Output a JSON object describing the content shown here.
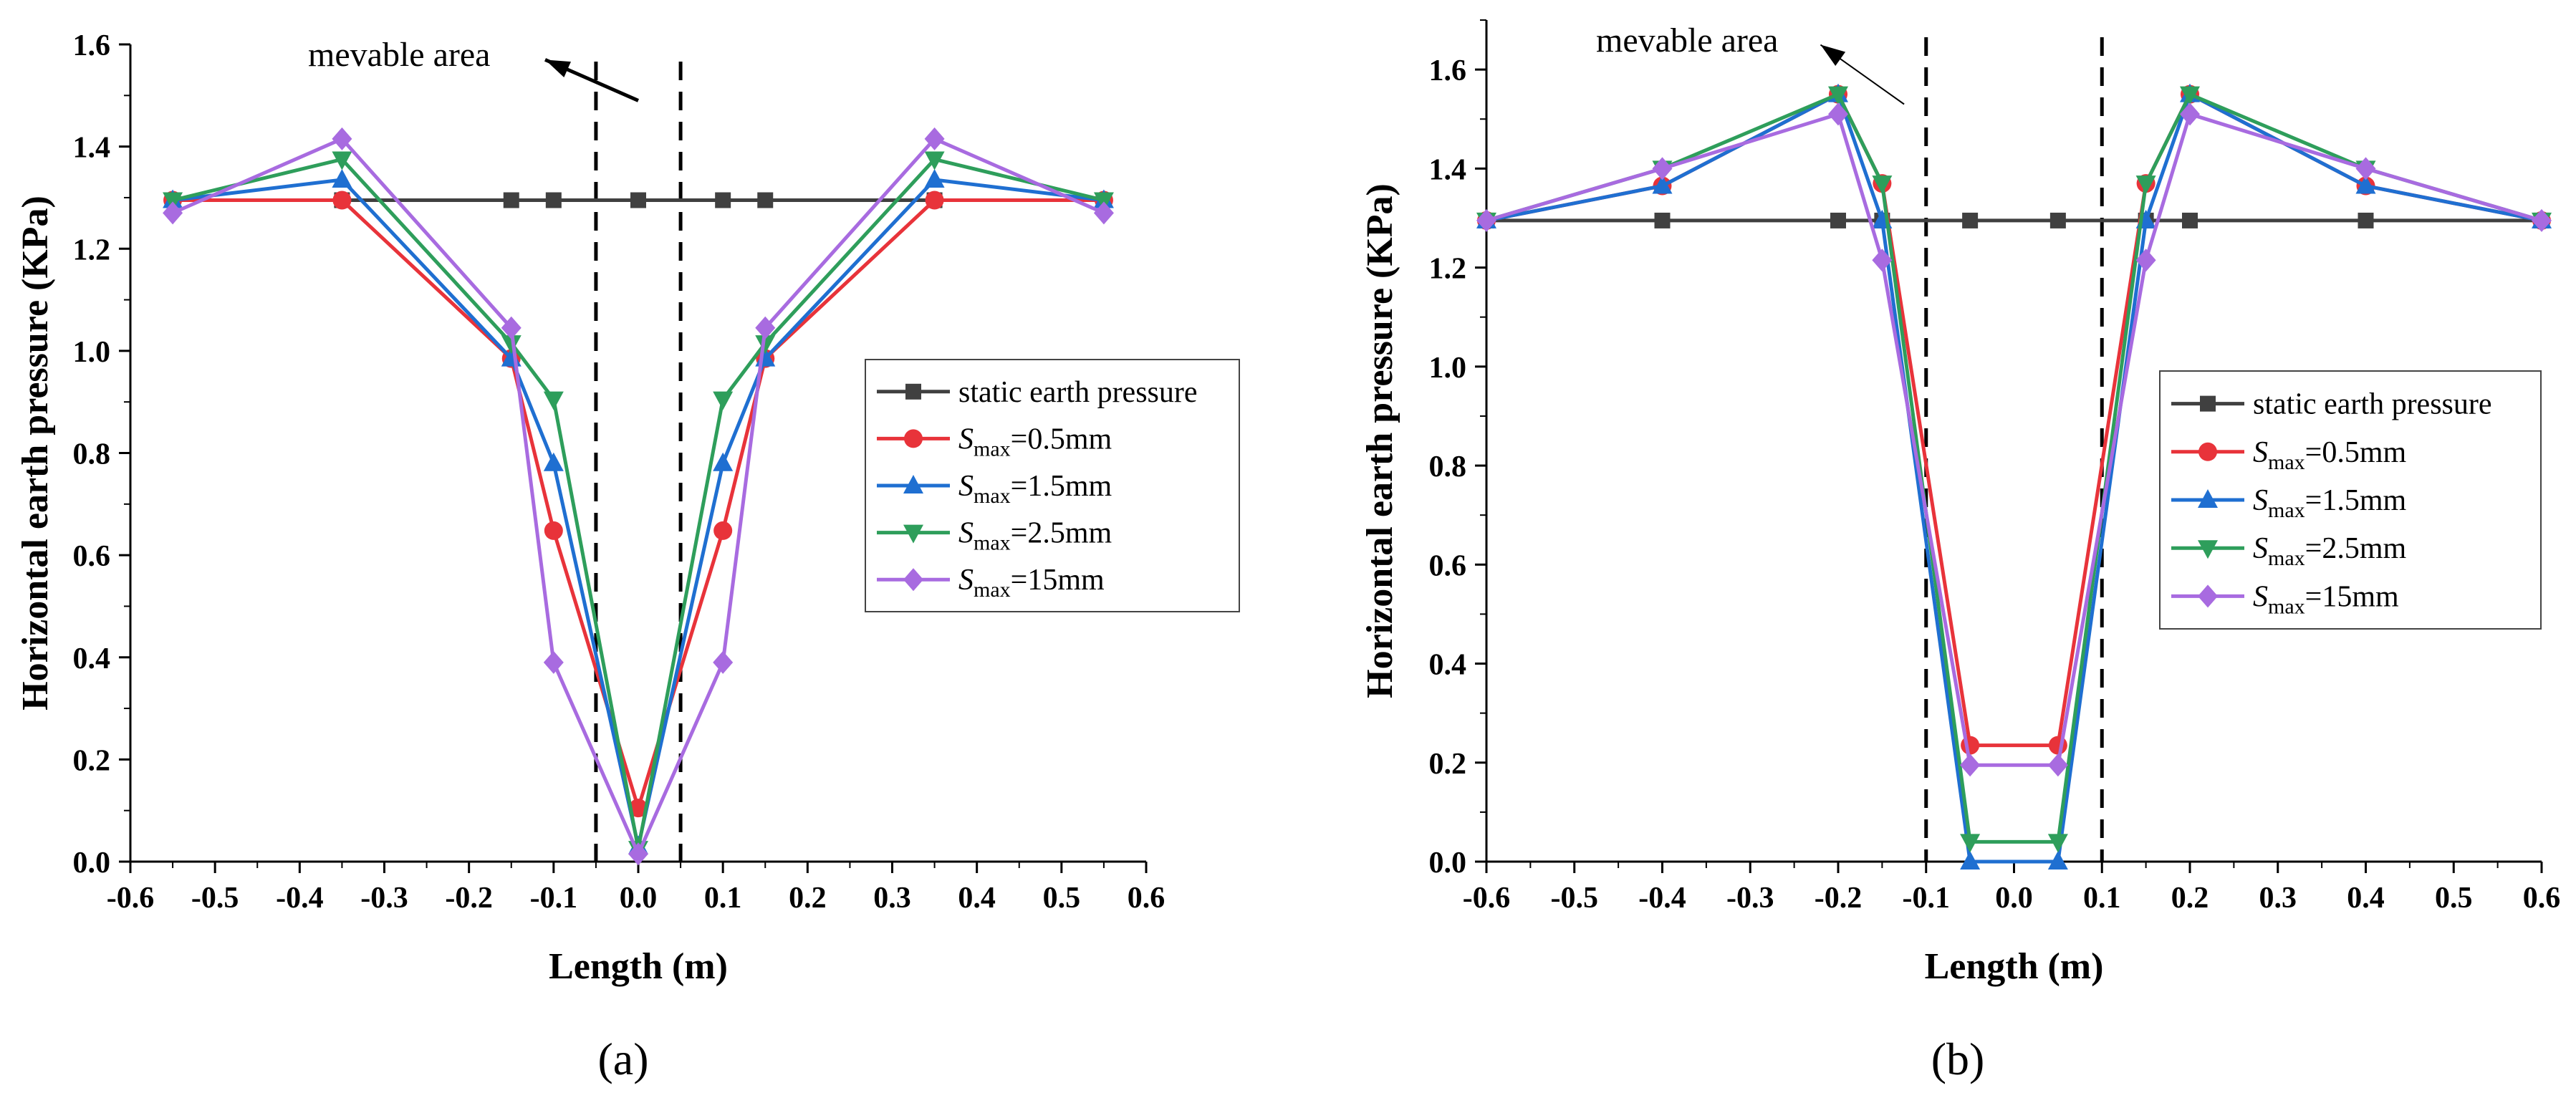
{
  "chart_data": [
    {
      "type": "line",
      "panel_label": "(a)",
      "xlabel": "Length (m)",
      "ylabel": "Horizontal earth pressure (KPa)",
      "xlim": [
        -0.6,
        0.6
      ],
      "ylim": [
        0,
        1.6
      ],
      "xticks": [
        -0.6,
        -0.5,
        -0.4,
        -0.3,
        -0.2,
        -0.1,
        0.0,
        0.1,
        0.2,
        0.3,
        0.4,
        0.5,
        0.6
      ],
      "xtick_labels": [
        "-0.6",
        "-0.5",
        "-0.4",
        "-0.3",
        "-0.2",
        "-0.1",
        "0.0",
        "0.1",
        "0.2",
        "0.3",
        "0.4",
        "0.5",
        "0.6"
      ],
      "yticks": [
        0.0,
        0.2,
        0.4,
        0.6,
        0.8,
        1.0,
        1.2,
        1.4,
        1.6
      ],
      "ytick_labels": [
        "0.0",
        "0.2",
        "0.4",
        "0.6",
        "0.8",
        "1.0",
        "1.2",
        "1.4",
        "1.6"
      ],
      "grid": false,
      "dashed_lines_x": [
        -0.05,
        0.05
      ],
      "annotation": {
        "text": "mevable area",
        "arrow_from": [
          0.0,
          1.49
        ],
        "arrow_to": [
          -0.11,
          1.57
        ]
      },
      "legend": {
        "position": "middle-right",
        "box_anchor_x": 0.328,
        "box_anchor_y": 0.95
      },
      "series": [
        {
          "name": "static earth pressure",
          "color": "#404040",
          "marker": "square",
          "x": [
            -0.55,
            -0.35,
            -0.15,
            -0.1,
            0.0,
            0.1,
            0.15,
            0.35,
            0.55
          ],
          "y": [
            1.295,
            1.295,
            1.295,
            1.295,
            1.295,
            1.295,
            1.295,
            1.295,
            1.295
          ]
        },
        {
          "name_main": "S",
          "name_sub": "max",
          "name_tail": "=0.5mm",
          "color": "#e8333a",
          "marker": "circle",
          "x": [
            -0.55,
            -0.35,
            -0.15,
            -0.1,
            0.0,
            0.1,
            0.15,
            0.35,
            0.55
          ],
          "y": [
            1.295,
            1.295,
            0.985,
            0.648,
            0.105,
            0.648,
            0.985,
            1.295,
            1.295
          ]
        },
        {
          "name_main": "S",
          "name_sub": "max",
          "name_tail": "=1.5mm",
          "color": "#1f6fd1",
          "marker": "triangle-up",
          "x": [
            -0.55,
            -0.35,
            -0.15,
            -0.1,
            0.0,
            0.1,
            0.15,
            0.35,
            0.55
          ],
          "y": [
            1.295,
            1.335,
            0.985,
            0.78,
            0.03,
            0.78,
            0.985,
            1.335,
            1.295
          ]
        },
        {
          "name_main": "S",
          "name_sub": "max",
          "name_tail": "=2.5mm",
          "color": "#2e9e5b",
          "marker": "triangle-down",
          "x": [
            -0.55,
            -0.35,
            -0.15,
            -0.1,
            0.0,
            0.1,
            0.15,
            0.35,
            0.55
          ],
          "y": [
            1.295,
            1.375,
            1.015,
            0.905,
            0.025,
            0.905,
            1.015,
            1.375,
            1.295
          ]
        },
        {
          "name_main": "S",
          "name_sub": "max",
          "name_tail": "=15mm",
          "color": "#a86be0",
          "marker": "diamond",
          "x": [
            -0.55,
            -0.35,
            -0.15,
            -0.1,
            0.0,
            0.1,
            0.15,
            0.35,
            0.55
          ],
          "y": [
            1.27,
            1.415,
            1.045,
            0.39,
            0.015,
            0.39,
            1.045,
            1.415,
            1.27
          ]
        }
      ]
    },
    {
      "type": "line",
      "panel_label": "(b)",
      "xlabel": "Length (m)",
      "ylabel": "Horizontal earth pressure (KPa)",
      "xlim": [
        -0.6,
        0.6
      ],
      "ylim": [
        0,
        1.7
      ],
      "xticks": [
        -0.6,
        -0.5,
        -0.4,
        -0.3,
        -0.2,
        -0.1,
        0.0,
        0.1,
        0.2,
        0.3,
        0.4,
        0.5,
        0.6
      ],
      "xtick_labels": [
        "-0.6",
        "-0.5",
        "-0.4",
        "-0.3",
        "-0.2",
        "-0.1",
        "0.0",
        "0.1",
        "0.2",
        "0.3",
        "0.4",
        "0.5",
        "0.6"
      ],
      "yticks": [
        0.0,
        0.2,
        0.4,
        0.6,
        0.8,
        1.0,
        1.2,
        1.4,
        1.6
      ],
      "ytick_labels": [
        "0.0",
        "0.2",
        "0.4",
        "0.6",
        "0.8",
        "1.0",
        "1.2",
        "1.4",
        "1.6"
      ],
      "grid": false,
      "dashed_lines_x": [
        -0.1,
        0.1
      ],
      "annotation": {
        "text": "mevable area",
        "arrow_from": [
          -0.125,
          1.53
        ],
        "arrow_to": [
          -0.22,
          1.65
        ]
      },
      "legend": {
        "position": "middle-right",
        "box_anchor_x": 0.46,
        "box_anchor_y": 0.98
      },
      "series": [
        {
          "name": "static earth pressure",
          "color": "#404040",
          "marker": "square",
          "x": [
            -0.6,
            -0.4,
            -0.2,
            -0.15,
            -0.05,
            0.05,
            0.15,
            0.2,
            0.4,
            0.6
          ],
          "y": [
            1.295,
            1.295,
            1.295,
            1.295,
            1.295,
            1.295,
            1.295,
            1.295,
            1.295,
            1.295
          ]
        },
        {
          "name_main": "S",
          "name_sub": "max",
          "name_tail": "=0.5mm",
          "color": "#e8333a",
          "marker": "circle",
          "x": [
            -0.6,
            -0.4,
            -0.2,
            -0.15,
            -0.05,
            0.05,
            0.15,
            0.2,
            0.4,
            0.6
          ],
          "y": [
            1.295,
            1.365,
            1.55,
            1.37,
            0.235,
            0.235,
            1.37,
            1.55,
            1.365,
            1.295
          ]
        },
        {
          "name_main": "S",
          "name_sub": "max",
          "name_tail": "=1.5mm",
          "color": "#1f6fd1",
          "marker": "triangle-up",
          "x": [
            -0.6,
            -0.4,
            -0.2,
            -0.15,
            -0.05,
            0.05,
            0.15,
            0.2,
            0.4,
            0.6
          ],
          "y": [
            1.295,
            1.365,
            1.55,
            1.295,
            0.0,
            0.0,
            1.295,
            1.55,
            1.365,
            1.295
          ]
        },
        {
          "name_main": "S",
          "name_sub": "max",
          "name_tail": "=2.5mm",
          "color": "#2e9e5b",
          "marker": "triangle-down",
          "x": [
            -0.6,
            -0.4,
            -0.2,
            -0.15,
            -0.05,
            0.05,
            0.15,
            0.2,
            0.4,
            0.6
          ],
          "y": [
            1.295,
            1.4,
            1.55,
            1.37,
            0.04,
            0.04,
            1.37,
            1.55,
            1.4,
            1.295
          ]
        },
        {
          "name_main": "S",
          "name_sub": "max",
          "name_tail": "=15mm",
          "color": "#a86be0",
          "marker": "diamond",
          "x": [
            -0.6,
            -0.4,
            -0.2,
            -0.15,
            -0.05,
            0.05,
            0.15,
            0.2,
            0.4,
            0.6
          ],
          "y": [
            1.295,
            1.4,
            1.51,
            1.215,
            0.195,
            0.195,
            1.215,
            1.51,
            1.4,
            1.295
          ]
        }
      ]
    }
  ]
}
